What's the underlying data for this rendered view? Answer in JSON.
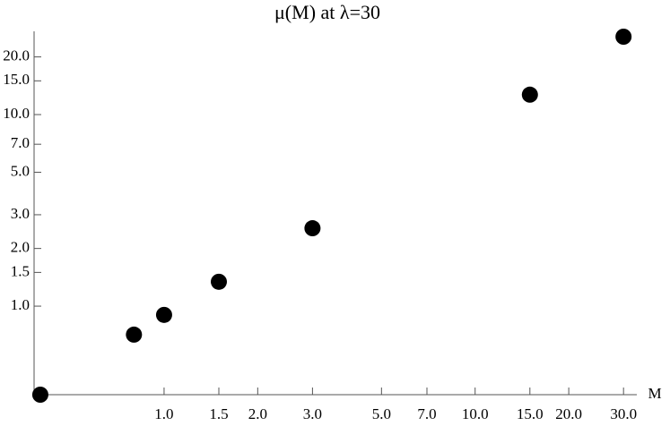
{
  "chart_data": {
    "type": "scatter",
    "title": "μ(M) at λ=30",
    "x_label": "M",
    "x": [
      0.4,
      0.8,
      1.0,
      1.5,
      3.0,
      15.0,
      30.0
    ],
    "y": [
      0.345,
      0.71,
      0.9,
      1.34,
      2.55,
      12.7,
      25.5
    ],
    "color": "#000000",
    "log_x": true,
    "log_y": true,
    "xlim": [
      0.382,
      33.1
    ],
    "ylim": [
      0.345,
      27.2
    ],
    "xticks": [
      {
        "value": 1,
        "label": "1.0"
      },
      {
        "value": 1.5,
        "label": "1.5"
      },
      {
        "value": 2,
        "label": "2.0"
      },
      {
        "value": 3,
        "label": "3.0"
      },
      {
        "value": 5,
        "label": "5.0"
      },
      {
        "value": 7,
        "label": "7.0"
      },
      {
        "value": 10,
        "label": "10.0"
      },
      {
        "value": 15,
        "label": "15.0"
      },
      {
        "value": 20,
        "label": "20.0"
      },
      {
        "value": 30,
        "label": "30.0"
      }
    ],
    "yticks": [
      {
        "value": 1,
        "label": "1.0"
      },
      {
        "value": 1.5,
        "label": "1.5"
      },
      {
        "value": 2,
        "label": "2.0"
      },
      {
        "value": 3,
        "label": "3.0"
      },
      {
        "value": 5,
        "label": "5.0"
      },
      {
        "value": 7,
        "label": "7.0"
      },
      {
        "value": 10,
        "label": "10.0"
      },
      {
        "value": 15,
        "label": "15.0"
      },
      {
        "value": 20,
        "label": "20.0"
      }
    ]
  }
}
